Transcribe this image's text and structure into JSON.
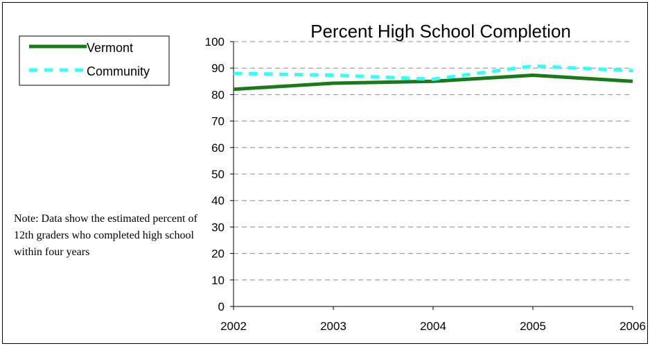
{
  "chart_data": {
    "type": "line",
    "title": "Percent High School Completion",
    "xlabel": "",
    "ylabel": "",
    "x": [
      2002,
      2003,
      2004,
      2005,
      2006
    ],
    "xlim": [
      2002,
      2006
    ],
    "ylim": [
      0,
      100
    ],
    "yticks": [
      0,
      10,
      20,
      30,
      40,
      50,
      60,
      70,
      80,
      90,
      100
    ],
    "grid": "horizontal dashed",
    "legend": "top-left",
    "series": [
      {
        "name": "Vermont",
        "values": [
          82,
          84.3,
          85,
          87.3,
          85
        ],
        "color": "#1a7a1a",
        "style": "solid"
      },
      {
        "name": "Community",
        "values": [
          88,
          87.3,
          85.8,
          90.8,
          89
        ],
        "color": "#33ffff",
        "style": "dashed"
      }
    ],
    "annotations": [
      "Note:  Data show the estimated percent of 12th graders who completed high school within four years"
    ]
  }
}
